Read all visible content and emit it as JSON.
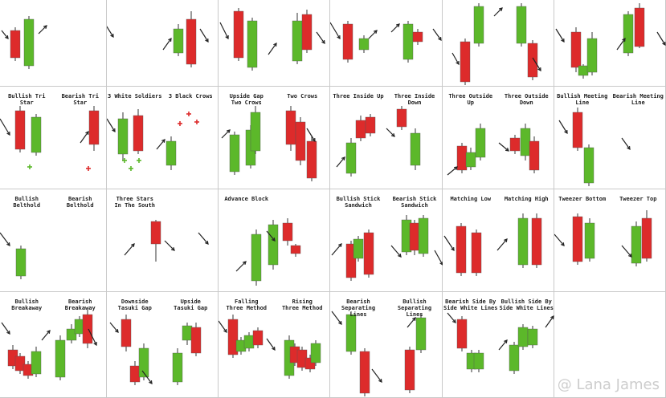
{
  "colors": {
    "bull": "#5cb82a",
    "bear": "#dd2b2b",
    "arrow": "#222222",
    "cross": "#dd2b2b",
    "cross_bull": "#5cb82a"
  },
  "watermark": "@ Lana James",
  "cells": [
    {
      "labels": [
        "",
        ""
      ]
    },
    {
      "labels": [
        "",
        ""
      ]
    },
    {
      "labels": [
        "",
        ""
      ]
    },
    {
      "labels": [
        "",
        ""
      ]
    },
    {
      "labels": [
        "",
        ""
      ]
    },
    {
      "labels": [
        "",
        ""
      ]
    },
    {
      "labels": [
        "Bullish Tri Star",
        "Bearish Tri Star"
      ]
    },
    {
      "labels": [
        "3 White Soldiers",
        "3 Black Crows"
      ]
    },
    {
      "labels": [
        "Upside Gap\nTwo Crows",
        "Two Crows"
      ]
    },
    {
      "labels": [
        "Three Inside Up",
        "Three Inside Down"
      ]
    },
    {
      "labels": [
        "Three Outside\nUp",
        "Three Outside\nDown"
      ]
    },
    {
      "labels": [
        "Bullish Meeting\nLine",
        "Bearish Meeting\nLine"
      ]
    },
    {
      "labels": [
        "Bullish Belthold",
        "Bearish Belthold"
      ]
    },
    {
      "labels": [
        "Three Stars\nIn The South",
        ""
      ]
    },
    {
      "labels": [
        "Advance Block",
        ""
      ]
    },
    {
      "labels": [
        "Bullish Stick\nSandwich",
        "Bearish Stick\nSandwich"
      ]
    },
    {
      "labels": [
        "Matching Low",
        "Matching High"
      ]
    },
    {
      "labels": [
        "Tweezer Bottom",
        "Tweezer Top"
      ]
    },
    {
      "labels": [
        "Bullish Breakaway",
        "Bearish Breakaway"
      ]
    },
    {
      "labels": [
        "Downside\nTasuki Gap",
        "Upside\nTasuki Gap"
      ]
    },
    {
      "labels": [
        "Falling\nThree Method",
        "Rising\nThree Method"
      ]
    },
    {
      "labels": [
        "Bearish Separating\nLines",
        "Bullish Separating\nLines"
      ]
    },
    {
      "labels": [
        "Bearish Side By\nSide White Lines",
        "Bullish Side By\nSide White Lines"
      ]
    },
    {
      "labels": [
        "",
        ""
      ]
    }
  ]
}
